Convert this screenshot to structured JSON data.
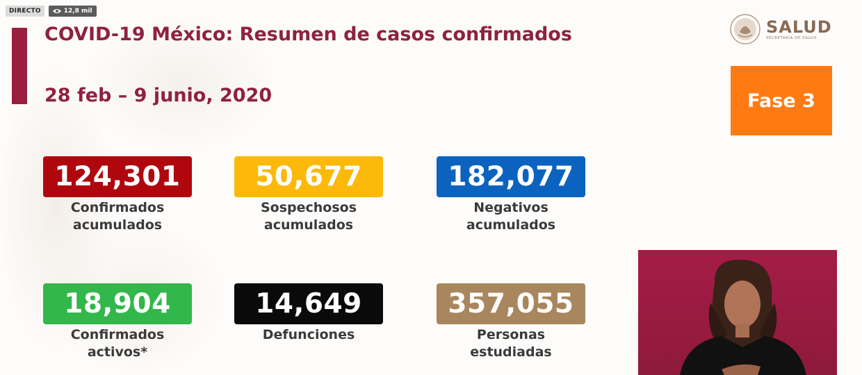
{
  "stream": {
    "live_label": "DIRECTO",
    "views": "12,8 mil"
  },
  "header": {
    "title": "COVID-19 México: Resumen de casos confirmados",
    "date_range": "28 feb – 9 junio, 2020"
  },
  "logo": {
    "name": "SALUD",
    "subtitle": "SECRETARÍA DE SALUD"
  },
  "phase": {
    "label": "Fase 3"
  },
  "stats": [
    {
      "value": "124,301",
      "line1": "Confirmados",
      "line2": "acumulados",
      "color": "#b0070f"
    },
    {
      "value": "50,677",
      "line1": "Sospechosos",
      "line2": "acumulados",
      "color": "#fcb90a"
    },
    {
      "value": "182,077",
      "line1": "Negativos",
      "line2": "acumulados",
      "color": "#0c63bf"
    },
    {
      "value": "18,904",
      "line1": "Confirmados",
      "line2": "activos*",
      "color": "#32b74a"
    },
    {
      "value": "14,649",
      "line1": "Defunciones",
      "line2": "",
      "color": "#0a0a0a"
    },
    {
      "value": "357,055",
      "line1": "Personas",
      "line2": "estudiadas",
      "color": "#a8875f"
    }
  ],
  "colors": {
    "title": "#8f2143",
    "accent_bar": "#9a1e3e",
    "phase_bg": "#ff7a12",
    "interpreter_bg": "#a51c47"
  },
  "icons": {
    "views": "eye-icon",
    "logo": "seal-icon"
  }
}
